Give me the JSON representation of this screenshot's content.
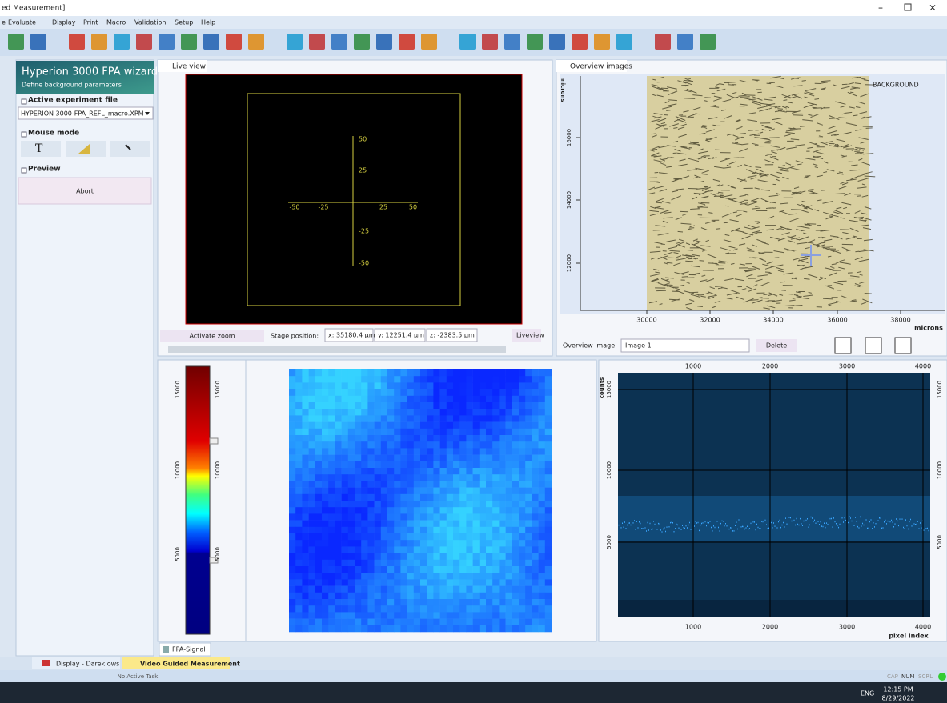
{
  "window": {
    "title": "ed Measurement]"
  },
  "menu": [
    "e",
    "Evaluate",
    "Display",
    "Print",
    "Macro",
    "Validation",
    "Setup",
    "Help"
  ],
  "wizard": {
    "title": "Hyperion 3000 FPA wizard",
    "subtitle": "Define background parameters",
    "sections": [
      "Active experiment file",
      "Mouse mode",
      "Preview"
    ],
    "experiment_file": "HYPERION 3000-FPA_REFL_macro.XPM",
    "abort": "Abort"
  },
  "live_view": {
    "tab": "Live view",
    "x_ticks": [
      "-50",
      "-25",
      "25",
      "50"
    ],
    "y_ticks": [
      "50",
      "25",
      "-25",
      "-50"
    ],
    "activate_zoom": "Activate zoom",
    "stage_label": "Stage position:",
    "x": "x: 35180.4 µm",
    "y": "y: 12251.4 µm",
    "z": "z: -2383.5 µm",
    "mode": "Liveview"
  },
  "overview": {
    "tab": "Overview images",
    "label": "BACKGROUND",
    "x_ticks": [
      "30000",
      "32000",
      "34000",
      "36000",
      "38000"
    ],
    "y_ticks": [
      "16000",
      "14000",
      "12000"
    ],
    "x_unit": "microns",
    "y_unit": "microns",
    "image_label": "Overview image:",
    "image": "Image 1",
    "delete": "Delete"
  },
  "colorbar": {
    "ticks": [
      "15000",
      "10000",
      "5000"
    ]
  },
  "fpa_tab": "FPA-Signal",
  "spectrum": {
    "x_ticks": [
      "1000",
      "2000",
      "3000",
      "4000"
    ],
    "y_ticks": [
      "15000",
      "10000",
      "5000"
    ],
    "x_label": "pixel index",
    "y_label": "counts"
  },
  "tabs": [
    "Display - Darek.ows",
    "Video Guided Measurement"
  ],
  "status": {
    "task": "No Active Task",
    "keys": [
      "CAP",
      "NUM",
      "SCRL"
    ]
  },
  "taskbar": {
    "lang": "ENG",
    "time": "12:15 PM",
    "date": "8/29/2022"
  }
}
